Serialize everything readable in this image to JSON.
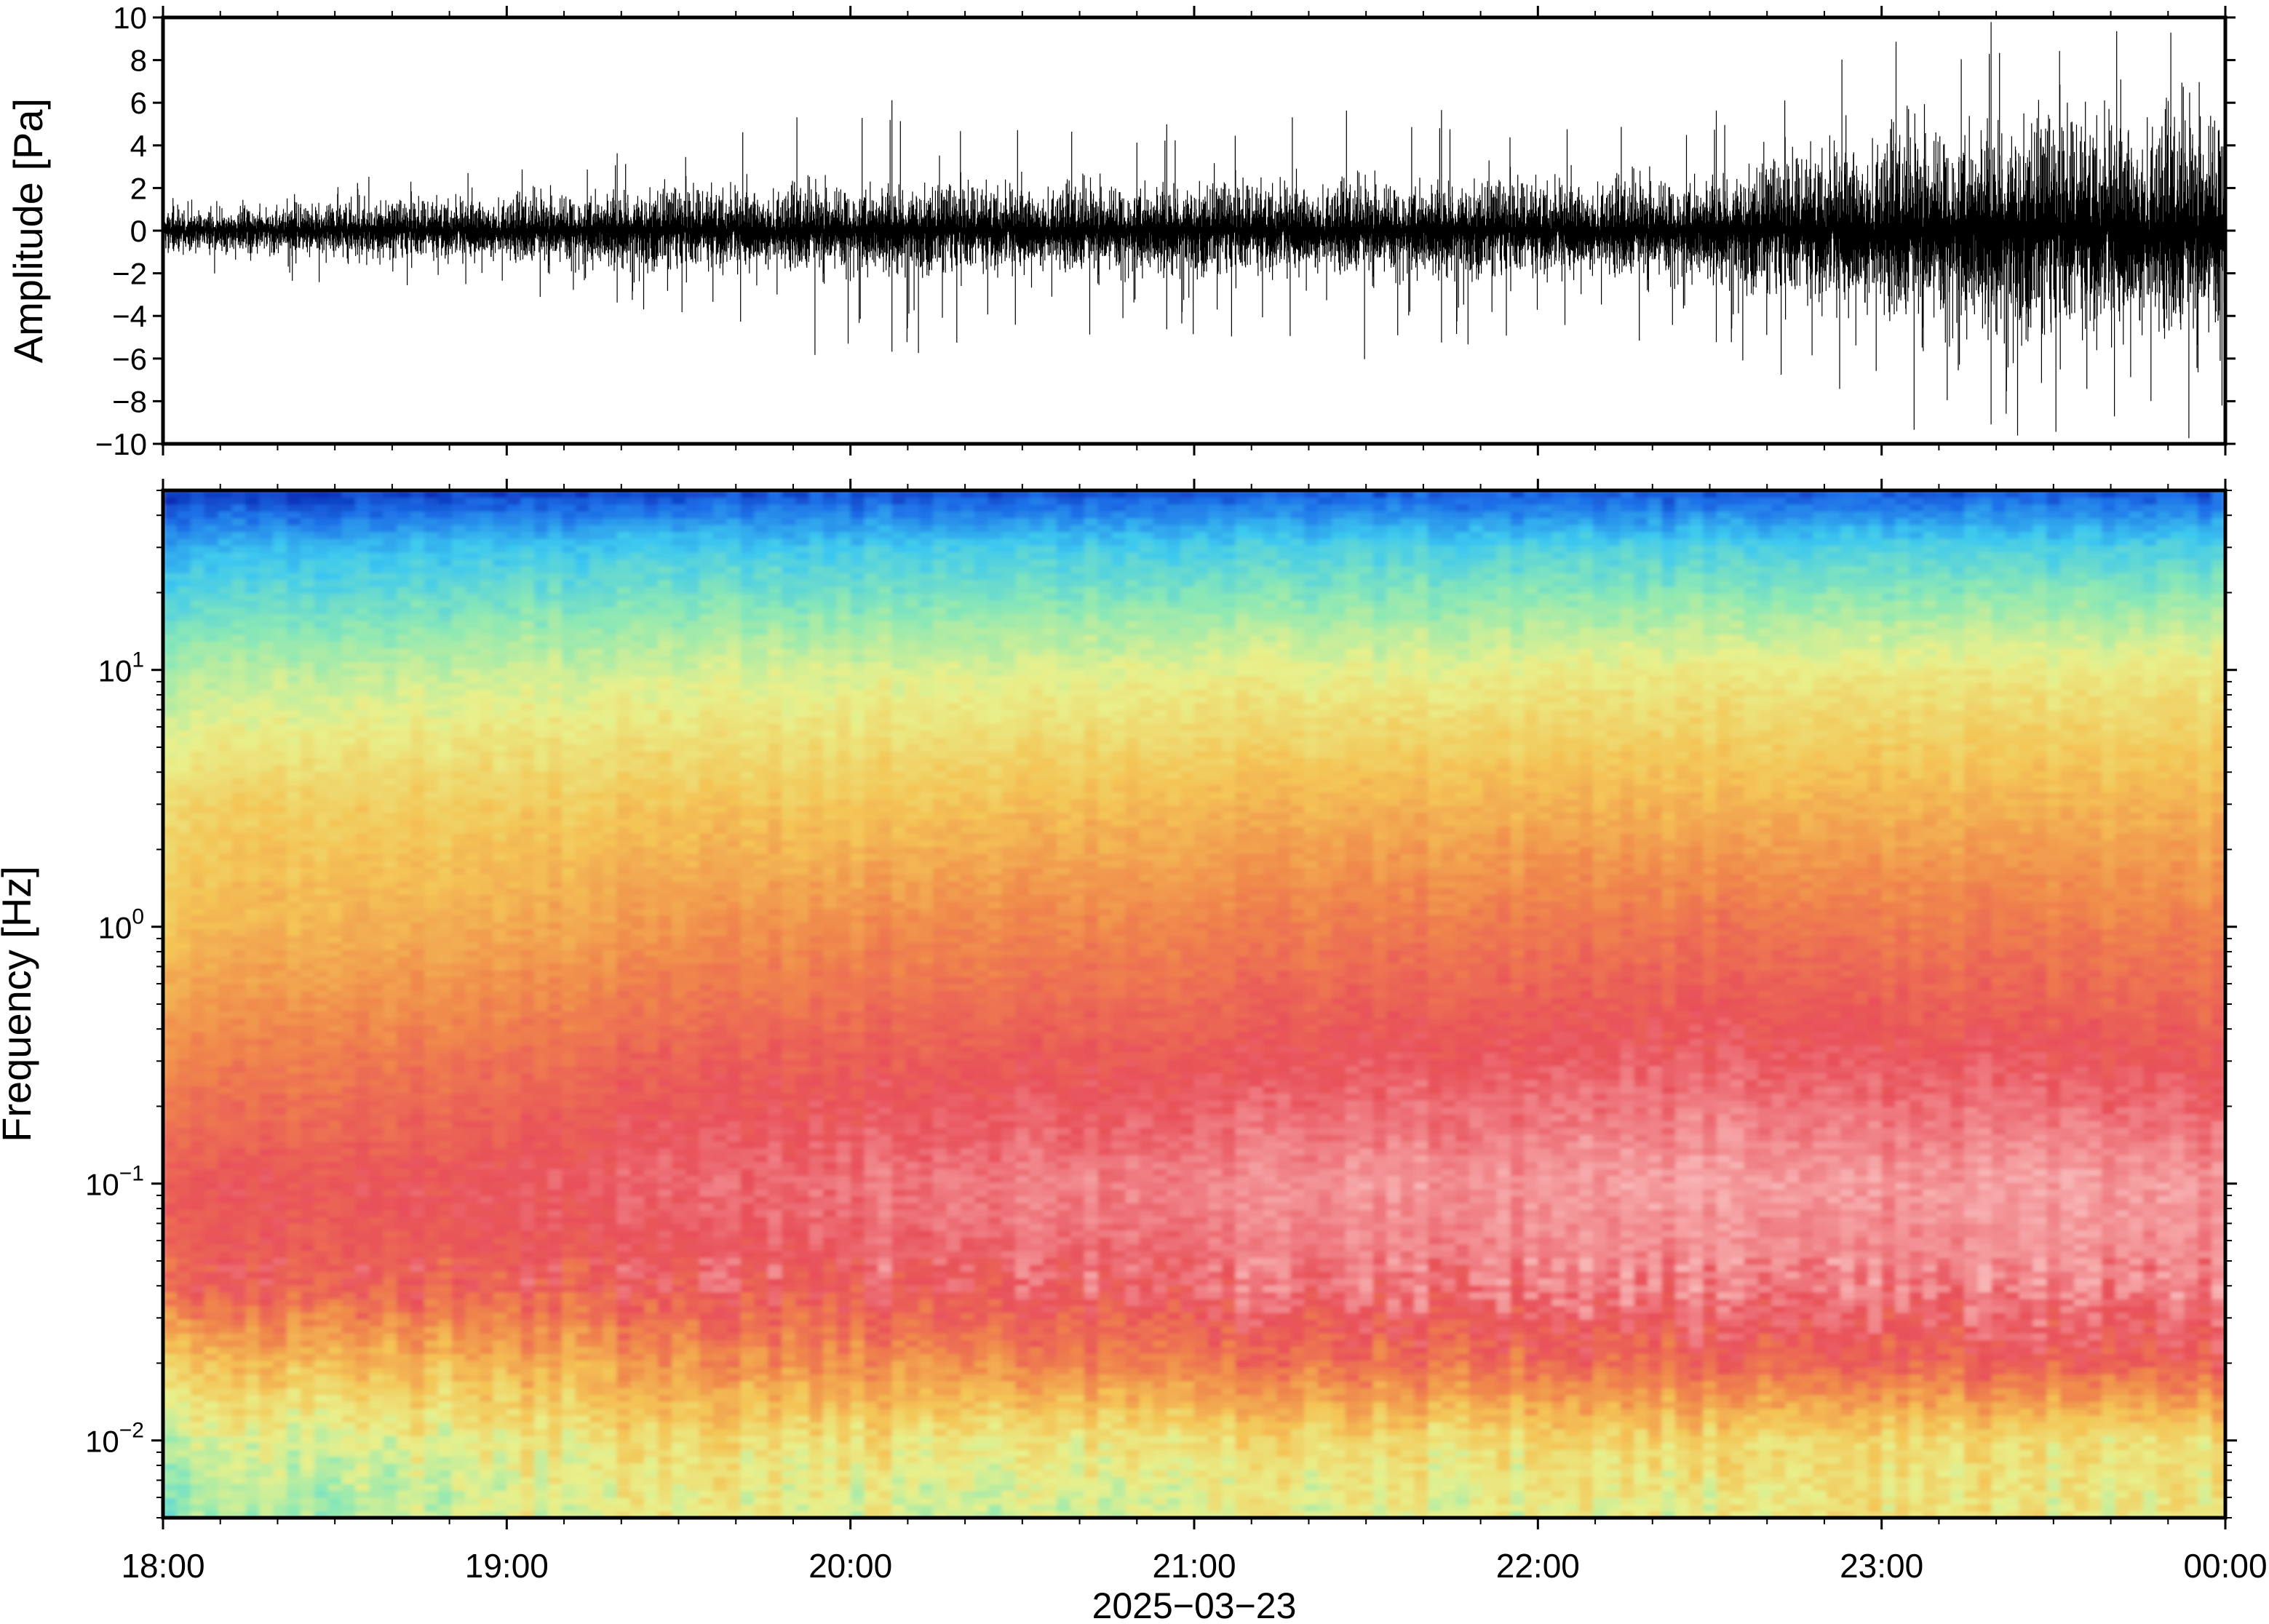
{
  "chart_data": [
    {
      "type": "line",
      "title": "",
      "xlabel": "",
      "ylabel": "Amplitude [Pa]",
      "ylim": [
        -10,
        10
      ],
      "yticks": [
        -10,
        -8,
        -6,
        -4,
        -2,
        0,
        2,
        4,
        6,
        8,
        10
      ],
      "ytick_labels": [
        "−10",
        "−8",
        "−6",
        "−4",
        "−2",
        "0",
        "2",
        "4",
        "6",
        "8",
        "10"
      ],
      "xlim_hours": [
        18,
        24
      ],
      "grid": false,
      "series": [
        {
          "color": "#000000",
          "x_hours": [
            18.0,
            18.5,
            19.0,
            19.5,
            20.0,
            20.5,
            21.0,
            21.5,
            22.0,
            22.5,
            23.0,
            23.5,
            24.0
          ],
          "envelope_pa": [
            1.5,
            1.8,
            2.3,
            2.8,
            3.0,
            3.0,
            3.1,
            3.2,
            3.3,
            3.5,
            6.5,
            7.5,
            8.0
          ],
          "max_spike_pa": [
            2.0,
            2.5,
            3.0,
            4.0,
            6.5,
            5.0,
            5.0,
            6.2,
            5.0,
            5.5,
            9.5,
            10.0,
            10.0
          ]
        }
      ]
    },
    {
      "type": "heatmap",
      "title": "",
      "xlabel": "2025−03−23",
      "ylabel": "Frequency [Hz]",
      "yscale": "log",
      "ylim_hz": [
        0.005,
        50
      ],
      "ytick_values": [
        0.01,
        0.1,
        1,
        10
      ],
      "ytick_base": [
        "10",
        "10",
        "10",
        "10"
      ],
      "ytick_exp": [
        "−2",
        "−1",
        "0",
        "1"
      ],
      "xticks_hours": [
        18,
        19,
        20,
        21,
        22,
        23,
        24
      ],
      "xtick_labels": [
        "18:00",
        "19:00",
        "20:00",
        "21:00",
        "22:00",
        "23:00",
        "00:00"
      ],
      "colormap": [
        "#0010a0",
        "#1e70e8",
        "#3cc8f0",
        "#8ce8b4",
        "#e8f08c",
        "#f4c455",
        "#f0884c",
        "#e8505a",
        "#f8b4b4"
      ],
      "time_hours": [
        18,
        18.5,
        19,
        19.5,
        20,
        20.5,
        21,
        21.5,
        22,
        22.5,
        23,
        23.5,
        24
      ],
      "freq_hz": [
        0.006,
        0.01,
        0.02,
        0.04,
        0.1,
        0.3,
        1,
        3,
        10,
        30,
        50
      ],
      "power_level": [
        [
          0.4,
          0.42,
          0.48,
          0.52,
          0.5,
          0.48,
          0.5,
          0.5,
          0.5,
          0.52,
          0.54,
          0.52,
          0.54
        ],
        [
          0.46,
          0.48,
          0.52,
          0.56,
          0.55,
          0.54,
          0.55,
          0.56,
          0.56,
          0.58,
          0.56,
          0.55,
          0.56
        ],
        [
          0.62,
          0.64,
          0.66,
          0.72,
          0.74,
          0.76,
          0.78,
          0.8,
          0.8,
          0.82,
          0.82,
          0.84,
          0.84
        ],
        [
          0.84,
          0.84,
          0.84,
          0.86,
          0.88,
          0.9,
          0.9,
          0.92,
          0.92,
          0.94,
          0.92,
          0.94,
          0.94
        ],
        [
          0.86,
          0.86,
          0.88,
          0.9,
          0.92,
          0.94,
          0.94,
          0.96,
          0.96,
          0.98,
          0.96,
          0.98,
          0.96
        ],
        [
          0.76,
          0.78,
          0.8,
          0.84,
          0.85,
          0.86,
          0.86,
          0.88,
          0.88,
          0.9,
          0.88,
          0.88,
          0.86
        ],
        [
          0.64,
          0.66,
          0.68,
          0.72,
          0.74,
          0.76,
          0.76,
          0.78,
          0.78,
          0.8,
          0.78,
          0.78,
          0.76
        ],
        [
          0.58,
          0.6,
          0.6,
          0.62,
          0.62,
          0.64,
          0.65,
          0.66,
          0.66,
          0.66,
          0.66,
          0.66,
          0.66
        ],
        [
          0.42,
          0.44,
          0.46,
          0.47,
          0.48,
          0.49,
          0.5,
          0.5,
          0.51,
          0.52,
          0.52,
          0.52,
          0.53
        ],
        [
          0.22,
          0.23,
          0.25,
          0.26,
          0.26,
          0.27,
          0.27,
          0.28,
          0.28,
          0.28,
          0.28,
          0.28,
          0.28
        ],
        [
          0.04,
          0.05,
          0.06,
          0.07,
          0.08,
          0.08,
          0.09,
          0.09,
          0.09,
          0.09,
          0.09,
          0.09,
          0.09
        ]
      ]
    }
  ]
}
